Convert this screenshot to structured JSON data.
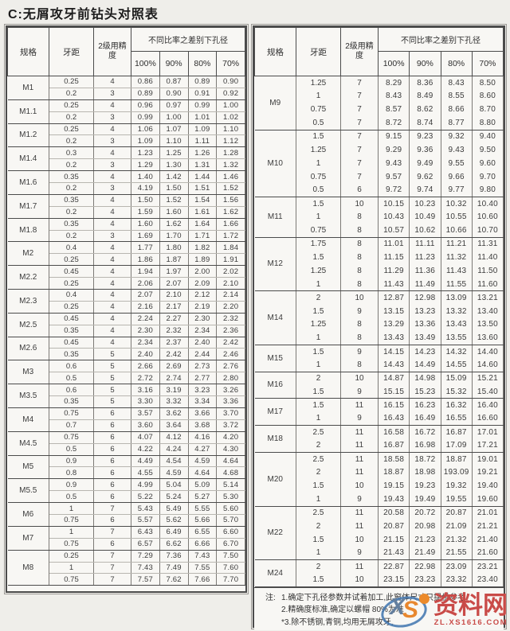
{
  "title": "C:无屑攻牙前钻头对照表",
  "header": {
    "spec": "规格",
    "pitch": "牙距",
    "precision": "2级用精度",
    "diameter_group": "不同比率之差别下孔径",
    "ratios": [
      "100%",
      "90%",
      "80%",
      "70%"
    ]
  },
  "left_table": {
    "groups": [
      {
        "spec": "M1",
        "rows": [
          [
            "0.25",
            "4",
            "0.86",
            "0.87",
            "0.89",
            "0.90"
          ],
          [
            "0.2",
            "3",
            "0.89",
            "0.90",
            "0.91",
            "0.92"
          ]
        ]
      },
      {
        "spec": "M1.1",
        "rows": [
          [
            "0.25",
            "4",
            "0.96",
            "0.97",
            "0.99",
            "1.00"
          ],
          [
            "0.2",
            "3",
            "0.99",
            "1.00",
            "1.01",
            "1.02"
          ]
        ]
      },
      {
        "spec": "M1.2",
        "rows": [
          [
            "0.25",
            "4",
            "1.06",
            "1.07",
            "1.09",
            "1.10"
          ],
          [
            "0.2",
            "3",
            "1.09",
            "1.10",
            "1.11",
            "1.12"
          ]
        ]
      },
      {
        "spec": "M1.4",
        "rows": [
          [
            "0.3",
            "4",
            "1.23",
            "1.25",
            "1.26",
            "1.28"
          ],
          [
            "0.2",
            "3",
            "1.29",
            "1.30",
            "1.31",
            "1.32"
          ]
        ]
      },
      {
        "spec": "M1.6",
        "rows": [
          [
            "0.35",
            "4",
            "1.40",
            "1.42",
            "1.44",
            "1.46"
          ],
          [
            "0.2",
            "3",
            "4.19",
            "1.50",
            "1.51",
            "1.52"
          ]
        ]
      },
      {
        "spec": "M1.7",
        "rows": [
          [
            "0.35",
            "4",
            "1.50",
            "1.52",
            "1.54",
            "1.56"
          ],
          [
            "0.2",
            "4",
            "1.59",
            "1.60",
            "1.61",
            "1.62"
          ]
        ]
      },
      {
        "spec": "M1.8",
        "rows": [
          [
            "0.35",
            "4",
            "1.60",
            "1.62",
            "1.64",
            "1.66"
          ],
          [
            "0.2",
            "3",
            "1.69",
            "1.70",
            "1.71",
            "1.72"
          ]
        ]
      },
      {
        "spec": "M2",
        "rows": [
          [
            "0.4",
            "4",
            "1.77",
            "1.80",
            "1.82",
            "1.84"
          ],
          [
            "0.25",
            "4",
            "1.86",
            "1.87",
            "1.89",
            "1.91"
          ]
        ]
      },
      {
        "spec": "M2.2",
        "rows": [
          [
            "0.45",
            "4",
            "1.94",
            "1.97",
            "2.00",
            "2.02"
          ],
          [
            "0.25",
            "4",
            "2.06",
            "2.07",
            "2.09",
            "2.10"
          ]
        ]
      },
      {
        "spec": "M2.3",
        "rows": [
          [
            "0.4",
            "4",
            "2.07",
            "2.10",
            "2.12",
            "2.14"
          ],
          [
            "0.25",
            "4",
            "2.16",
            "2.17",
            "2.19",
            "2.20"
          ]
        ]
      },
      {
        "spec": "M2.5",
        "rows": [
          [
            "0.45",
            "4",
            "2.24",
            "2.27",
            "2.30",
            "2.32"
          ],
          [
            "0.35",
            "4",
            "2.30",
            "2.32",
            "2.34",
            "2.36"
          ]
        ]
      },
      {
        "spec": "M2.6",
        "rows": [
          [
            "0.45",
            "4",
            "2.34",
            "2.37",
            "2.40",
            "2.42"
          ],
          [
            "0.35",
            "5",
            "2.40",
            "2.42",
            "2.44",
            "2.46"
          ]
        ]
      },
      {
        "spec": "M3",
        "rows": [
          [
            "0.6",
            "5",
            "2.66",
            "2.69",
            "2.73",
            "2.76"
          ],
          [
            "0.5",
            "5",
            "2.72",
            "2.74",
            "2.77",
            "2.80"
          ]
        ]
      },
      {
        "spec": "M3.5",
        "rows": [
          [
            "0.6",
            "5",
            "3.16",
            "3.19",
            "3.23",
            "3.26"
          ],
          [
            "0.35",
            "5",
            "3.30",
            "3.32",
            "3.34",
            "3.36"
          ]
        ]
      },
      {
        "spec": "M4",
        "rows": [
          [
            "0.75",
            "6",
            "3.57",
            "3.62",
            "3.66",
            "3.70"
          ],
          [
            "0.7",
            "6",
            "3.60",
            "3.64",
            "3.68",
            "3.72"
          ]
        ]
      },
      {
        "spec": "M4.5",
        "rows": [
          [
            "0.75",
            "6",
            "4.07",
            "4.12",
            "4.16",
            "4.20"
          ],
          [
            "0.5",
            "6",
            "4.22",
            "4.24",
            "4.27",
            "4.30"
          ]
        ]
      },
      {
        "spec": "M5",
        "rows": [
          [
            "0.9",
            "6",
            "4.49",
            "4.54",
            "4.59",
            "4.64"
          ],
          [
            "0.8",
            "6",
            "4.55",
            "4.59",
            "4.64",
            "4.68"
          ]
        ]
      },
      {
        "spec": "M5.5",
        "rows": [
          [
            "0.9",
            "6",
            "4.99",
            "5.04",
            "5.09",
            "5.14"
          ],
          [
            "0.5",
            "6",
            "5.22",
            "5.24",
            "5.27",
            "5.30"
          ]
        ]
      },
      {
        "spec": "M6",
        "rows": [
          [
            "1",
            "7",
            "5.43",
            "5.49",
            "5.55",
            "5.60"
          ],
          [
            "0.75",
            "6",
            "5.57",
            "5.62",
            "5.66",
            "5.70"
          ]
        ]
      },
      {
        "spec": "M7",
        "rows": [
          [
            "1",
            "7",
            "6.43",
            "6.49",
            "6.55",
            "6.60"
          ],
          [
            "0.75",
            "6",
            "6.57",
            "6.62",
            "6.66",
            "6.70"
          ]
        ]
      },
      {
        "spec": "M8",
        "rows": [
          [
            "0.25",
            "7",
            "7.29",
            "7.36",
            "7.43",
            "7.50"
          ],
          [
            "1",
            "7",
            "7.43",
            "7.49",
            "7.55",
            "7.60"
          ],
          [
            "0.75",
            "7",
            "7.57",
            "7.62",
            "7.66",
            "7.70"
          ]
        ]
      }
    ]
  },
  "right_table": {
    "groups": [
      {
        "spec": "M9",
        "rows": [
          [
            "1.25",
            "7",
            "8.29",
            "8.36",
            "8.43",
            "8.50"
          ],
          [
            "1",
            "7",
            "8.43",
            "8.49",
            "8.55",
            "8.60"
          ],
          [
            "0.75",
            "7",
            "8.57",
            "8.62",
            "8.66",
            "8.70"
          ],
          [
            "0.5",
            "7",
            "8.72",
            "8.74",
            "8.77",
            "8.80"
          ]
        ]
      },
      {
        "spec": "M10",
        "rows": [
          [
            "1.5",
            "7",
            "9.15",
            "9.23",
            "9.32",
            "9.40"
          ],
          [
            "1.25",
            "7",
            "9.29",
            "9.36",
            "9.43",
            "9.50"
          ],
          [
            "1",
            "7",
            "9.43",
            "9.49",
            "9.55",
            "9.60"
          ],
          [
            "0.75",
            "7",
            "9.57",
            "9.62",
            "9.66",
            "9.70"
          ],
          [
            "0.5",
            "6",
            "9.72",
            "9.74",
            "9.77",
            "9.80"
          ]
        ]
      },
      {
        "spec": "M11",
        "rows": [
          [
            "1.5",
            "10",
            "10.15",
            "10.23",
            "10.32",
            "10.40"
          ],
          [
            "1",
            "8",
            "10.43",
            "10.49",
            "10.55",
            "10.60"
          ],
          [
            "0.75",
            "8",
            "10.57",
            "10.62",
            "10.66",
            "10.70"
          ]
        ]
      },
      {
        "spec": "M12",
        "rows": [
          [
            "1.75",
            "8",
            "11.01",
            "11.11",
            "11.21",
            "11.31"
          ],
          [
            "1.5",
            "8",
            "11.15",
            "11.23",
            "11.32",
            "11.40"
          ],
          [
            "1.25",
            "8",
            "11.29",
            "11.36",
            "11.43",
            "11.50"
          ],
          [
            "1",
            "8",
            "11.43",
            "11.49",
            "11.55",
            "11.60"
          ]
        ]
      },
      {
        "spec": "M14",
        "rows": [
          [
            "2",
            "10",
            "12.87",
            "12.98",
            "13.09",
            "13.21"
          ],
          [
            "1.5",
            "9",
            "13.15",
            "13.23",
            "13.32",
            "13.40"
          ],
          [
            "1.25",
            "8",
            "13.29",
            "13.36",
            "13.43",
            "13.50"
          ],
          [
            "1",
            "8",
            "13.43",
            "13.49",
            "13.55",
            "13.60"
          ]
        ]
      },
      {
        "spec": "M15",
        "rows": [
          [
            "1.5",
            "9",
            "14.15",
            "14.23",
            "14.32",
            "14.40"
          ],
          [
            "1",
            "8",
            "14.43",
            "14.49",
            "14.55",
            "14.60"
          ]
        ]
      },
      {
        "spec": "M16",
        "rows": [
          [
            "2",
            "10",
            "14.87",
            "14.98",
            "15.09",
            "15.21"
          ],
          [
            "1.5",
            "9",
            "15.15",
            "15.23",
            "15.32",
            "15.40"
          ]
        ]
      },
      {
        "spec": "M17",
        "rows": [
          [
            "1.5",
            "11",
            "16.15",
            "16.23",
            "16.32",
            "16.40"
          ],
          [
            "1",
            "9",
            "16.43",
            "16.49",
            "16.55",
            "16.60"
          ]
        ]
      },
      {
        "spec": "M18",
        "rows": [
          [
            "2.5",
            "11",
            "16.58",
            "16.72",
            "16.87",
            "17.01"
          ],
          [
            "2",
            "11",
            "16.87",
            "16.98",
            "17.09",
            "17.21"
          ]
        ]
      },
      {
        "spec": "M20",
        "rows": [
          [
            "2.5",
            "11",
            "18.58",
            "18.72",
            "18.87",
            "19.01"
          ],
          [
            "2",
            "11",
            "18.87",
            "18.98",
            "193.09",
            "19.21"
          ],
          [
            "1.5",
            "10",
            "19.15",
            "19.23",
            "19.32",
            "19.40"
          ],
          [
            "1",
            "9",
            "19.43",
            "19.49",
            "19.55",
            "19.60"
          ]
        ]
      },
      {
        "spec": "M22",
        "rows": [
          [
            "2.5",
            "11",
            "20.58",
            "20.72",
            "20.87",
            "21.01"
          ],
          [
            "2",
            "11",
            "20.87",
            "20.98",
            "21.09",
            "21.21"
          ],
          [
            "1.5",
            "10",
            "21.15",
            "21.23",
            "21.32",
            "21.40"
          ],
          [
            "1",
            "9",
            "21.43",
            "21.49",
            "21.55",
            "21.60"
          ]
        ]
      },
      {
        "spec": "M24",
        "rows": [
          [
            "2",
            "11",
            "22.87",
            "22.98",
            "23.09",
            "23.21"
          ],
          [
            "1.5",
            "10",
            "23.15",
            "23.23",
            "23.32",
            "23.40"
          ]
        ]
      }
    ]
  },
  "notes": {
    "label": "注:",
    "lines": [
      "1.确定下孔径参数并试着加工,此窗体尺寸只提供参考",
      "2.精确度标准,确定以螺帽 80%为准",
      "*3.除不锈钢,青铜,均用无屑攻牙,"
    ]
  },
  "watermark": {
    "logo_x": "X",
    "logo_s": "S",
    "site_name": "资料网",
    "site_url": "ZL.XS1616.COM",
    "text_color": "#c94b48",
    "logo_blue": "#3f74ae",
    "logo_orange": "#e8872e"
  }
}
